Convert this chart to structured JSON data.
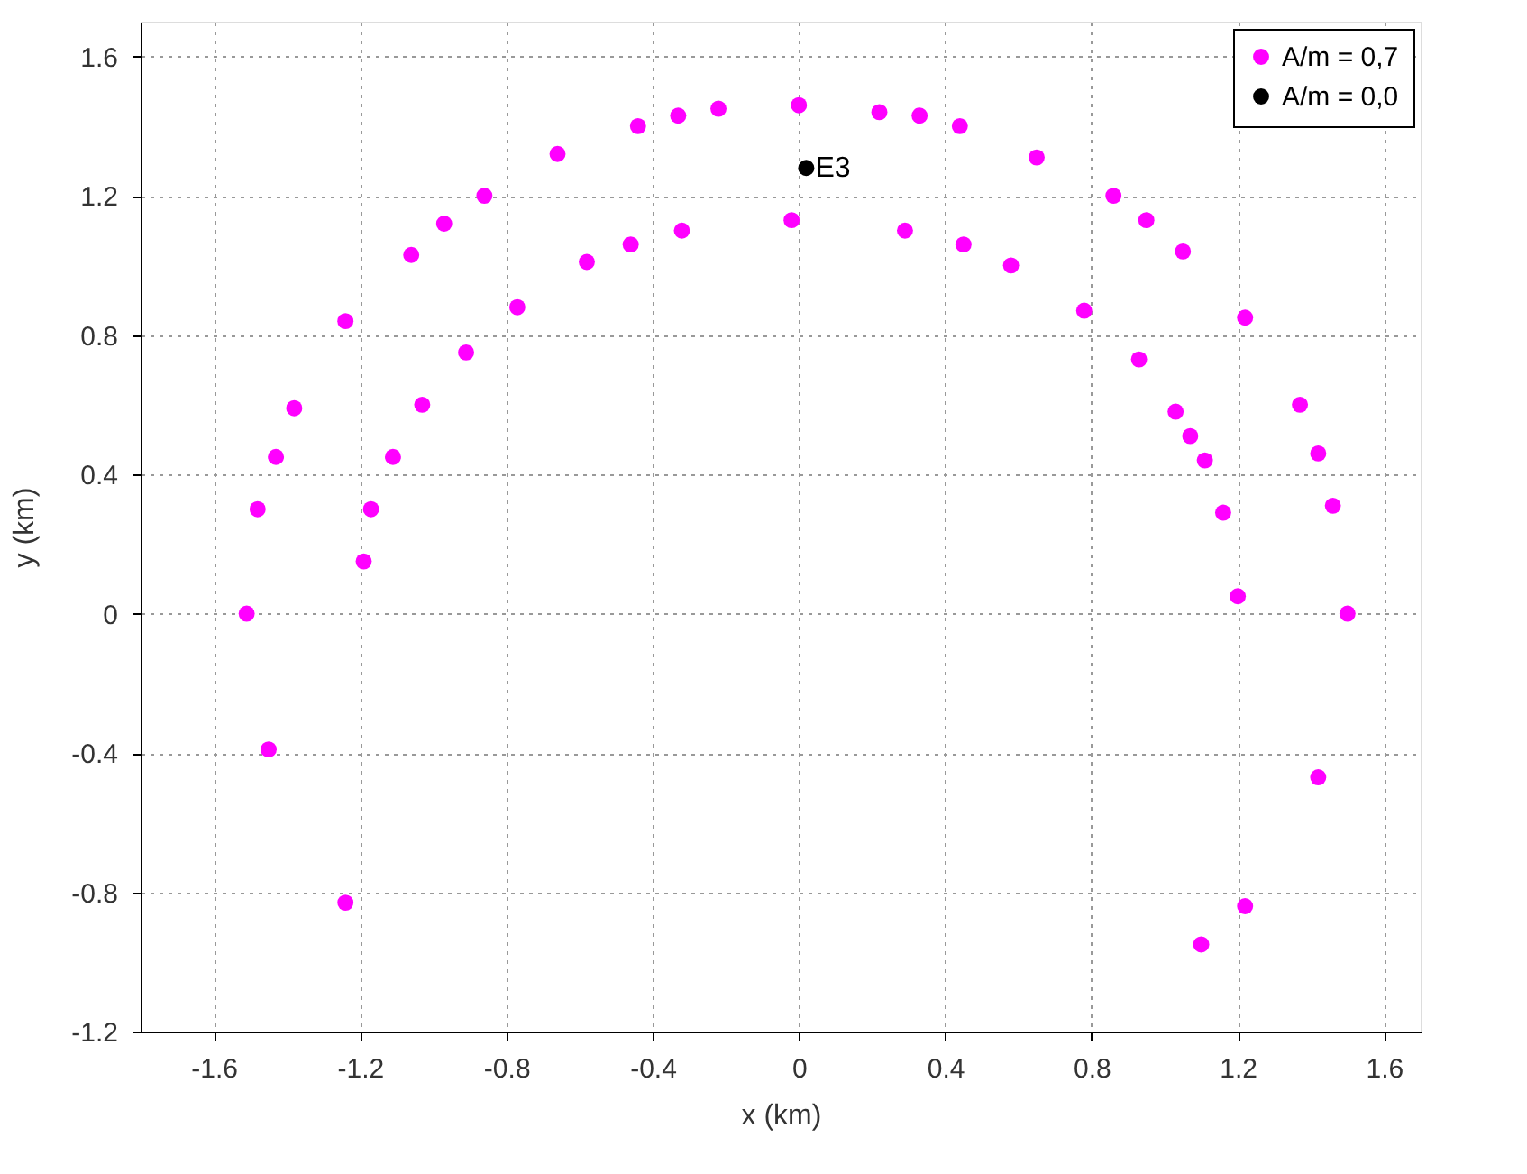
{
  "chart_data": {
    "type": "scatter",
    "xlabel": "x (km)",
    "ylabel": "y (km)",
    "xlim": [
      -1.8,
      1.7
    ],
    "ylim": [
      -1.2,
      1.7
    ],
    "xticks": [
      -1.6,
      -1.2,
      -0.8,
      -0.4,
      0,
      0.4,
      0.8,
      1.2,
      1.6
    ],
    "yticks": [
      -1.2,
      -0.8,
      -0.4,
      0,
      0.4,
      0.8,
      1.2,
      1.6
    ],
    "grid": true,
    "legend": "top right",
    "marker": "circle",
    "series": [
      {
        "name": "A/m = 0,7",
        "color": "#ff00ff",
        "x": [
          -1.51,
          -1.48,
          -1.43,
          -1.38,
          -1.24,
          -1.19,
          -1.17,
          -1.11,
          -1.06,
          -1.03,
          -0.97,
          -0.91,
          -0.86,
          -0.77,
          -0.66,
          -0.58,
          -0.46,
          -0.44,
          -0.33,
          -0.32,
          -0.22,
          -0.02,
          0.0,
          0.22,
          0.33,
          0.29,
          0.44,
          0.45,
          0.58,
          0.65,
          0.78,
          0.86,
          0.95,
          0.93,
          1.05,
          1.03,
          1.07,
          1.11,
          1.22,
          1.16,
          1.37,
          1.42,
          1.46,
          1.2,
          1.5,
          -1.45,
          -1.24,
          1.42,
          1.22,
          1.1
        ],
        "values": [
          0.0,
          0.3,
          0.45,
          0.59,
          0.84,
          0.15,
          0.3,
          0.45,
          1.03,
          0.6,
          1.12,
          0.75,
          1.2,
          0.88,
          1.32,
          1.01,
          1.06,
          1.4,
          1.43,
          1.1,
          1.45,
          1.13,
          1.46,
          1.44,
          1.43,
          1.1,
          1.4,
          1.06,
          1.0,
          1.31,
          0.87,
          1.2,
          1.13,
          0.73,
          1.04,
          0.58,
          0.51,
          0.44,
          0.85,
          0.29,
          0.6,
          0.46,
          0.31,
          0.05,
          0.0,
          -0.39,
          -0.83,
          -0.47,
          -0.84,
          -0.95
        ]
      },
      {
        "name": "A/m = 0,0",
        "color": "#000000",
        "x": [
          0.02
        ],
        "values": [
          1.28
        ]
      }
    ],
    "annotations": [
      {
        "text": "E3",
        "x": 0.02,
        "y": 1.28
      }
    ]
  }
}
